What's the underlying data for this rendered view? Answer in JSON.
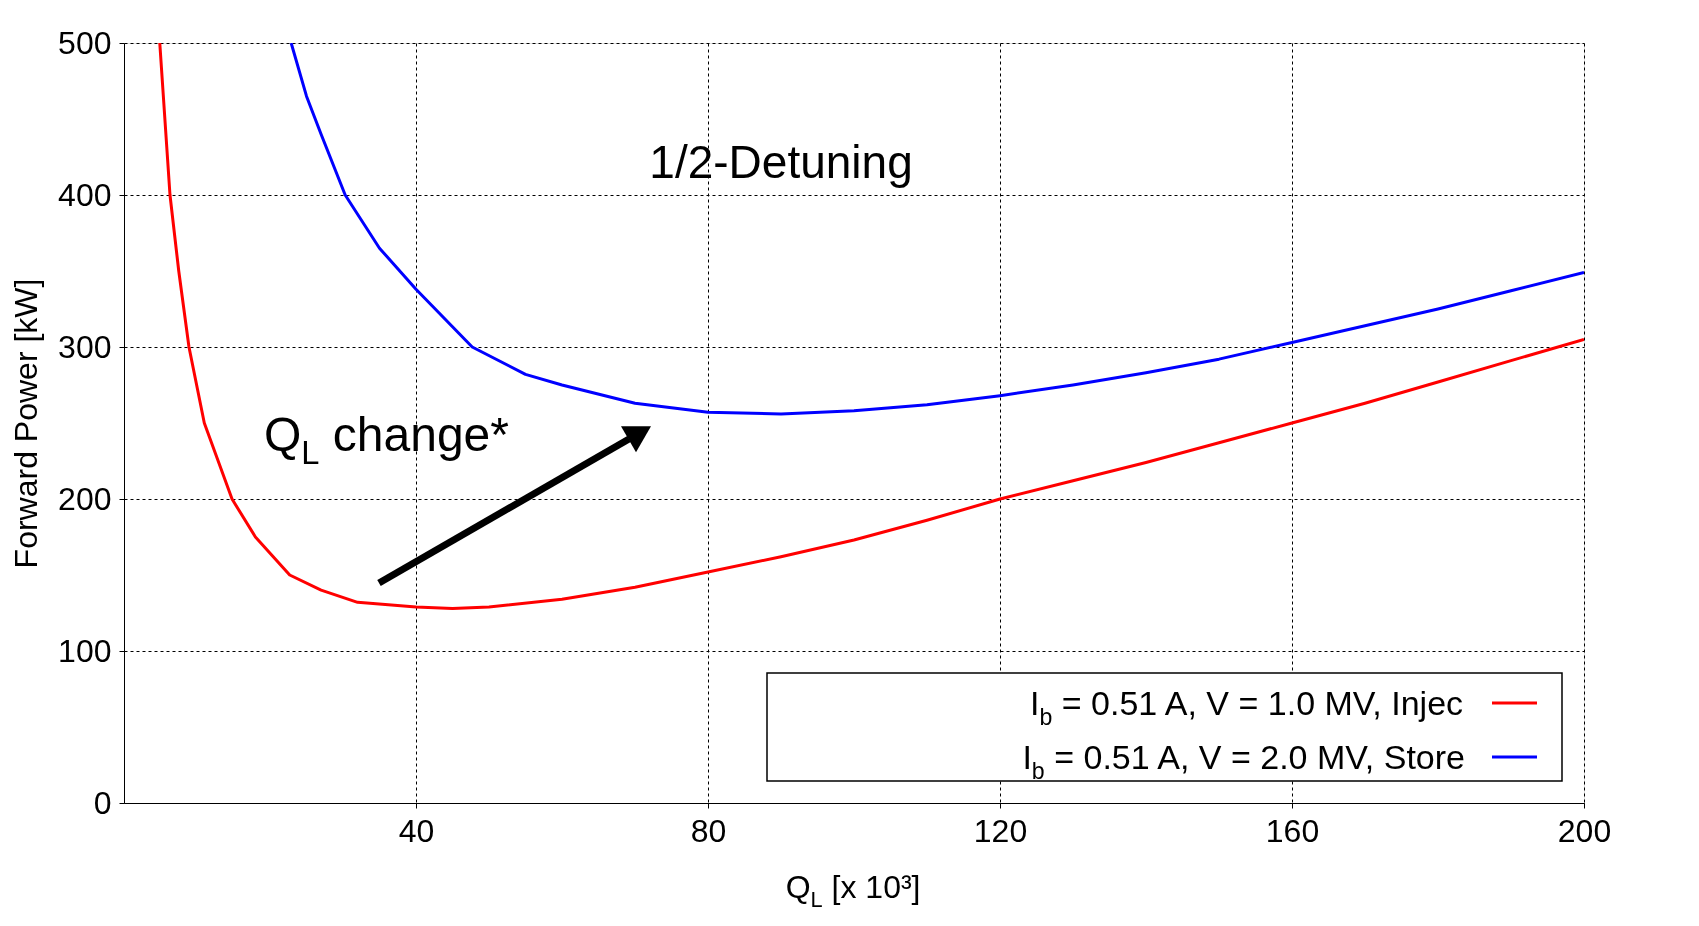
{
  "chart_data": {
    "type": "line",
    "xlabel": "Q$_{L}$ [x 10³]",
    "ylabel": "Forward Power [kW]",
    "xlim": [
      0,
      200
    ],
    "xticks": [
      40,
      80,
      120,
      160,
      200
    ],
    "ylim": [
      0,
      500
    ],
    "yticks": [
      0,
      100,
      200,
      300,
      400,
      500
    ],
    "grid": true,
    "legend": "bottom right",
    "line_style": "solid",
    "marker": "none",
    "annotations": [
      "1/2-Detuning",
      "Q$_{L}$ change*"
    ],
    "series": [
      {
        "name": "I$_{b}$ = 0.51 A, V = 1.0 MV, Injec",
        "color": "#ff0000",
        "x": [
          4.9,
          6.3,
          7.5,
          8.9,
          11,
          14.8,
          18,
          22.7,
          27,
          32,
          40,
          45,
          50,
          60,
          70,
          80,
          90,
          100,
          110,
          120,
          130,
          140,
          150,
          160,
          170,
          180,
          190,
          200
        ],
        "values": [
          500,
          400,
          350,
          300,
          250,
          200,
          175,
          150,
          140,
          132,
          129,
          128,
          129,
          134,
          142,
          152,
          162,
          173,
          186,
          200,
          212,
          224,
          237,
          250,
          263,
          277,
          291,
          305
        ]
      },
      {
        "name": "I$_{b}$ = 0.51 A, V = 2.0 MV, Store",
        "color": "#0000ff",
        "x": [
          22.9,
          25,
          27,
          30.3,
          35,
          40,
          47.7,
          55,
          60,
          70,
          80,
          90,
          100,
          110,
          120,
          130,
          140,
          150,
          160,
          170,
          180,
          190,
          200
        ],
        "values": [
          500,
          465,
          440,
          400,
          365,
          338,
          300,
          282,
          275,
          263,
          257,
          256,
          258,
          262,
          268,
          275,
          283,
          292,
          303,
          314,
          325,
          337,
          349
        ]
      }
    ]
  }
}
